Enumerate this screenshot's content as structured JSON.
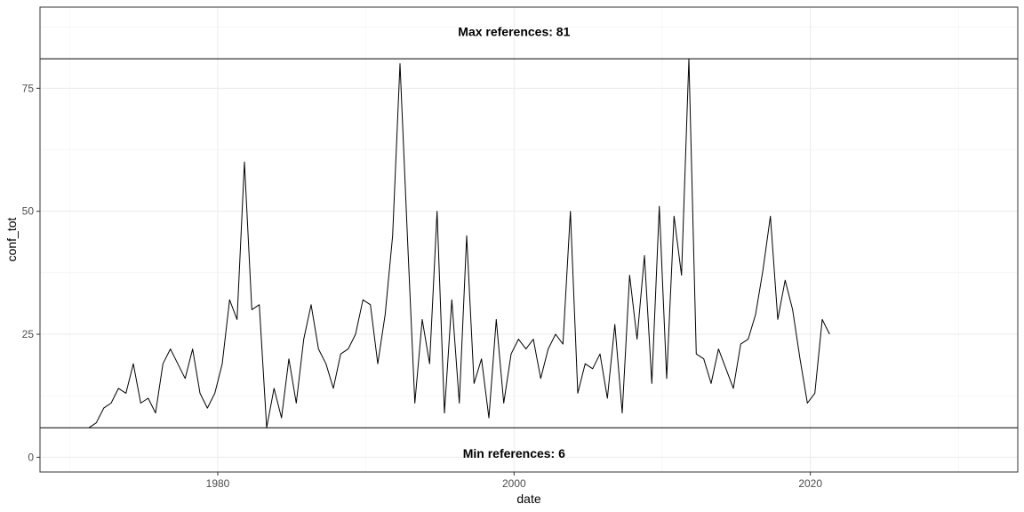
{
  "chart_data": {
    "type": "line",
    "xlabel": "date",
    "ylabel": "conf_tot",
    "xlim": [
      1968,
      2034
    ],
    "ylim": [
      -3,
      91.5
    ],
    "x_ticks": [
      1980,
      2000,
      2020
    ],
    "y_ticks": [
      0,
      25,
      50,
      75
    ],
    "grid": true,
    "hlines": [
      81,
      6
    ],
    "annotations": [
      {
        "text": "Max references: 81",
        "x": 2000,
        "y": 86.5
      },
      {
        "text": "Min references: 6",
        "x": 2000,
        "y": 0.8
      }
    ],
    "series": [
      {
        "x": [
          1971.3,
          1971.8,
          1972.3,
          1972.8,
          1973.3,
          1973.8,
          1974.3,
          1974.8,
          1975.3,
          1975.8,
          1976.3,
          1976.8,
          1977.3,
          1977.8,
          1978.3,
          1978.8,
          1979.3,
          1979.8,
          1980.3,
          1980.8,
          1981.3,
          1981.8,
          1982.3,
          1982.8,
          1983.3,
          1983.8,
          1984.3,
          1984.8,
          1985.3,
          1985.8,
          1986.3,
          1986.8,
          1987.3,
          1987.8,
          1988.3,
          1988.8,
          1989.3,
          1989.8,
          1990.3,
          1990.8,
          1991.3,
          1991.8,
          1992.3,
          1992.8,
          1993.3,
          1993.8,
          1994.3,
          1994.8,
          1995.3,
          1995.8,
          1996.3,
          1996.8,
          1997.3,
          1997.8,
          1998.3,
          1998.8,
          1999.3,
          1999.8,
          2000.3,
          2000.8,
          2001.3,
          2001.8,
          2002.3,
          2002.8,
          2003.3,
          2003.8,
          2004.3,
          2004.8,
          2005.3,
          2005.8,
          2006.3,
          2006.8,
          2007.3,
          2007.8,
          2008.3,
          2008.8,
          2009.3,
          2009.8,
          2010.3,
          2010.8,
          2011.3,
          2011.8,
          2012.3,
          2012.8,
          2013.3,
          2013.8,
          2014.3,
          2014.8,
          2015.3,
          2015.8,
          2016.3,
          2016.8,
          2017.3,
          2017.8,
          2018.3,
          2018.8,
          2019.3,
          2019.8,
          2020.3,
          2020.8,
          2021.3
        ],
        "y": [
          6,
          7,
          10,
          11,
          14,
          13,
          19,
          11,
          12,
          9,
          19,
          22,
          19,
          16,
          22,
          13,
          10,
          13,
          19,
          32,
          28,
          60,
          30,
          31,
          6,
          14,
          8,
          20,
          11,
          24,
          31,
          22,
          19,
          14,
          21,
          22,
          25,
          32,
          31,
          19,
          29,
          45,
          80,
          45,
          11,
          28,
          19,
          50,
          9,
          32,
          11,
          45,
          15,
          20,
          8,
          28,
          11,
          21,
          24,
          22,
          24,
          16,
          22,
          25,
          23,
          50,
          13,
          19,
          18,
          21,
          12,
          27,
          9,
          37,
          24,
          41,
          15,
          51,
          16,
          49,
          37,
          81,
          21,
          20,
          15,
          22,
          18,
          14,
          23,
          24,
          29,
          38,
          49,
          28,
          36,
          30,
          20,
          11,
          13,
          28,
          25
        ]
      }
    ]
  }
}
